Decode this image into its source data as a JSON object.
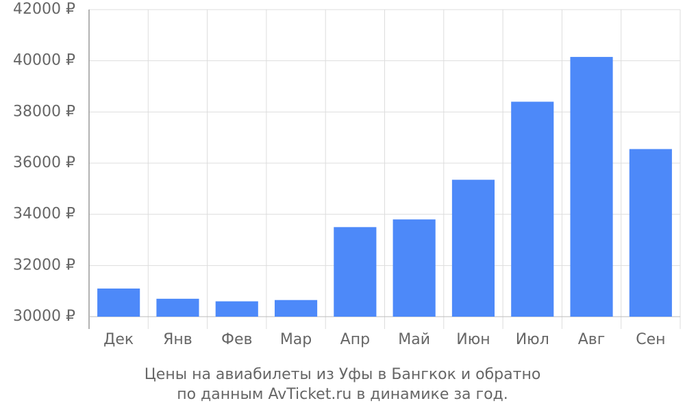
{
  "chart_data": {
    "type": "bar",
    "title_lines": [
      "Цены на авиабилеты из Уфы в Бангкок и обратно",
      "по данным AvTicket.ru в динамике за год."
    ],
    "categories": [
      "Дек",
      "Янв",
      "Фев",
      "Мар",
      "Апр",
      "Май",
      "Июн",
      "Июл",
      "Авг",
      "Сен"
    ],
    "values": [
      31100,
      30700,
      30600,
      30650,
      33500,
      33800,
      35350,
      38400,
      40150,
      36550
    ],
    "color": "#4d89f9",
    "ylim": [
      30000,
      42000
    ],
    "yticks": [
      {
        "value": 30000,
        "label": "30000 ₽"
      },
      {
        "value": 32000,
        "label": "32000 ₽"
      },
      {
        "value": 34000,
        "label": "34000 ₽"
      },
      {
        "value": 36000,
        "label": "36000 ₽"
      },
      {
        "value": 38000,
        "label": "38000 ₽"
      },
      {
        "value": 40000,
        "label": "40000 ₽"
      },
      {
        "value": 42000,
        "label": "42000 ₽"
      }
    ],
    "grid": true
  }
}
